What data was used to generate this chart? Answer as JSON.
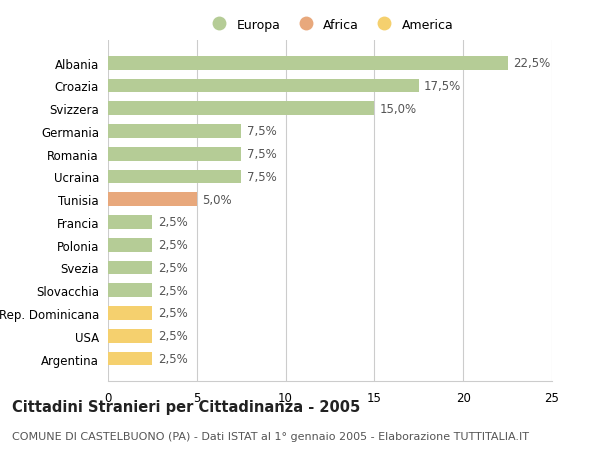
{
  "countries": [
    "Albania",
    "Croazia",
    "Svizzera",
    "Germania",
    "Romania",
    "Ucraina",
    "Tunisia",
    "Francia",
    "Polonia",
    "Svezia",
    "Slovacchia",
    "Rep. Dominicana",
    "USA",
    "Argentina"
  ],
  "values": [
    22.5,
    17.5,
    15.0,
    7.5,
    7.5,
    7.5,
    5.0,
    2.5,
    2.5,
    2.5,
    2.5,
    2.5,
    2.5,
    2.5
  ],
  "categories": [
    "Europa",
    "Africa",
    "America"
  ],
  "continent": [
    "Europa",
    "Europa",
    "Europa",
    "Europa",
    "Europa",
    "Europa",
    "Africa",
    "Europa",
    "Europa",
    "Europa",
    "Europa",
    "America",
    "America",
    "America"
  ],
  "colors": {
    "Europa": "#b5cc96",
    "Africa": "#e8a87c",
    "America": "#f5d06e"
  },
  "xlim": [
    0,
    25
  ],
  "xticks": [
    0,
    5,
    10,
    15,
    20,
    25
  ],
  "title": "Cittadini Stranieri per Cittadinanza - 2005",
  "subtitle": "COMUNE DI CASTELBUONO (PA) - Dati ISTAT al 1° gennaio 2005 - Elaborazione TUTTITALIA.IT",
  "bg_color": "#ffffff",
  "grid_color": "#cccccc",
  "bar_height": 0.6,
  "label_fontsize": 8.5,
  "title_fontsize": 10.5,
  "subtitle_fontsize": 8
}
